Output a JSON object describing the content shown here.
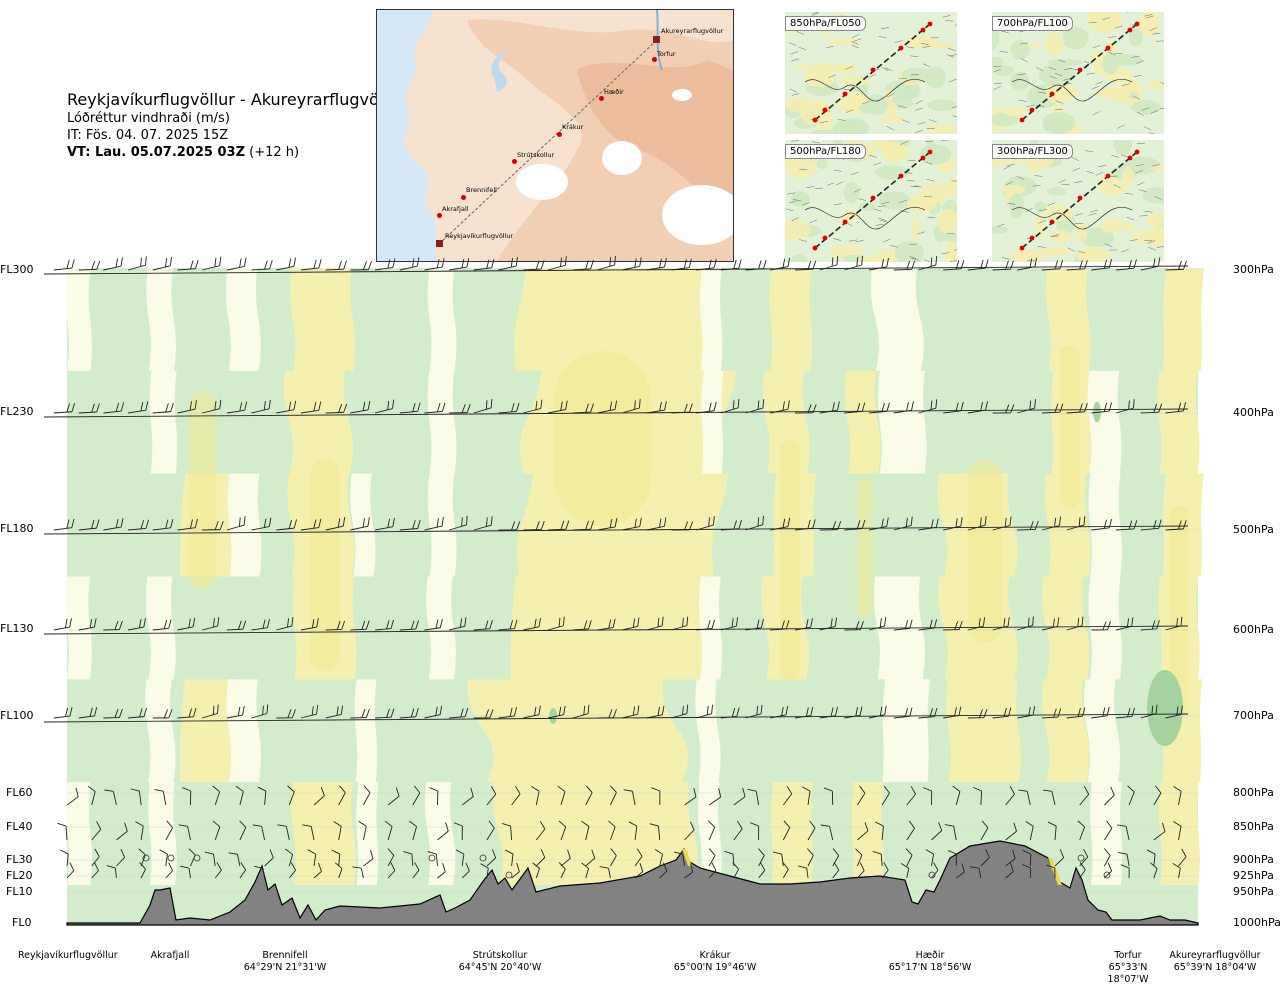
{
  "header": {
    "route": "Reykjavíkurflugvöllur - Akureyrarflugvöllur",
    "variable": "Lóðréttur vindhraði (m/s)",
    "issue_time": "IT: Fös. 04. 07. 2025 15Z",
    "valid_time_bold": "VT: Lau. 05.07.2025 03Z",
    "valid_time_offset": "(+12 h)"
  },
  "map": {
    "points": [
      {
        "name": "Akureyrarflugvöllur"
      },
      {
        "name": "Torfur"
      },
      {
        "name": "Hæðir"
      },
      {
        "name": "Krákur"
      },
      {
        "name": "Strútskollur"
      },
      {
        "name": "Brennifell"
      },
      {
        "name": "Akrafjall"
      },
      {
        "name": "Reykjavíkurflugvöllur"
      }
    ]
  },
  "thumbnails": [
    {
      "label": "850hPa/FL050"
    },
    {
      "label": "700hPa/FL100"
    },
    {
      "label": "500hPa/FL180"
    },
    {
      "label": "300hPa/FL300"
    }
  ],
  "colors": {
    "up_light": "#d3edcc",
    "up_mid": "#bfe3b5",
    "up_strong": "#a5d3a0",
    "down_light": "#f5f0b0",
    "down_mid": "#f1e88e",
    "neutral": "#fafce8",
    "terrain": "#828282",
    "barb": "#222222"
  },
  "chart_data": {
    "type": "heatmap",
    "title": "Reykjavíkurflugvöllur - Akureyrarflugvöllur",
    "quantity": "Lóðréttur vindhraði (m/s)",
    "y_levels_left": [
      "FL300",
      "FL230",
      "FL180",
      "FL130",
      "FL100",
      "FL60",
      "FL40",
      "FL30",
      "FL20",
      "FL10",
      "FL0"
    ],
    "y_levels_right": [
      "300hPa",
      "400hPa",
      "500hPa",
      "600hPa",
      "700hPa",
      "800hPa",
      "850hPa",
      "900hPa",
      "925hPa",
      "950hPa",
      "1000hPa"
    ],
    "x_waypoints": [
      {
        "name": "Reykjavíkurflugvöllur",
        "coord": ""
      },
      {
        "name": "Akrafjall",
        "coord": ""
      },
      {
        "name": "Brennifell",
        "coord": "64°29'N 21°31'W"
      },
      {
        "name": "Strútskollur",
        "coord": "64°45'N 20°40'W"
      },
      {
        "name": "Krákur",
        "coord": "65°00'N 19°46'W"
      },
      {
        "name": "Hæðir",
        "coord": "65°17'N 18°56'W"
      },
      {
        "name": "Torfur",
        "coord": "65°33'N 18°07'W"
      },
      {
        "name": "Akureyrarflugvöllur",
        "coord": "65°39'N 18°04'W"
      }
    ],
    "barb_levels": [
      "FL300",
      "FL230",
      "FL180",
      "FL130",
      "FL100",
      "FL60",
      "FL40",
      "FL30",
      "FL20"
    ],
    "grid": true,
    "legend": "none"
  }
}
